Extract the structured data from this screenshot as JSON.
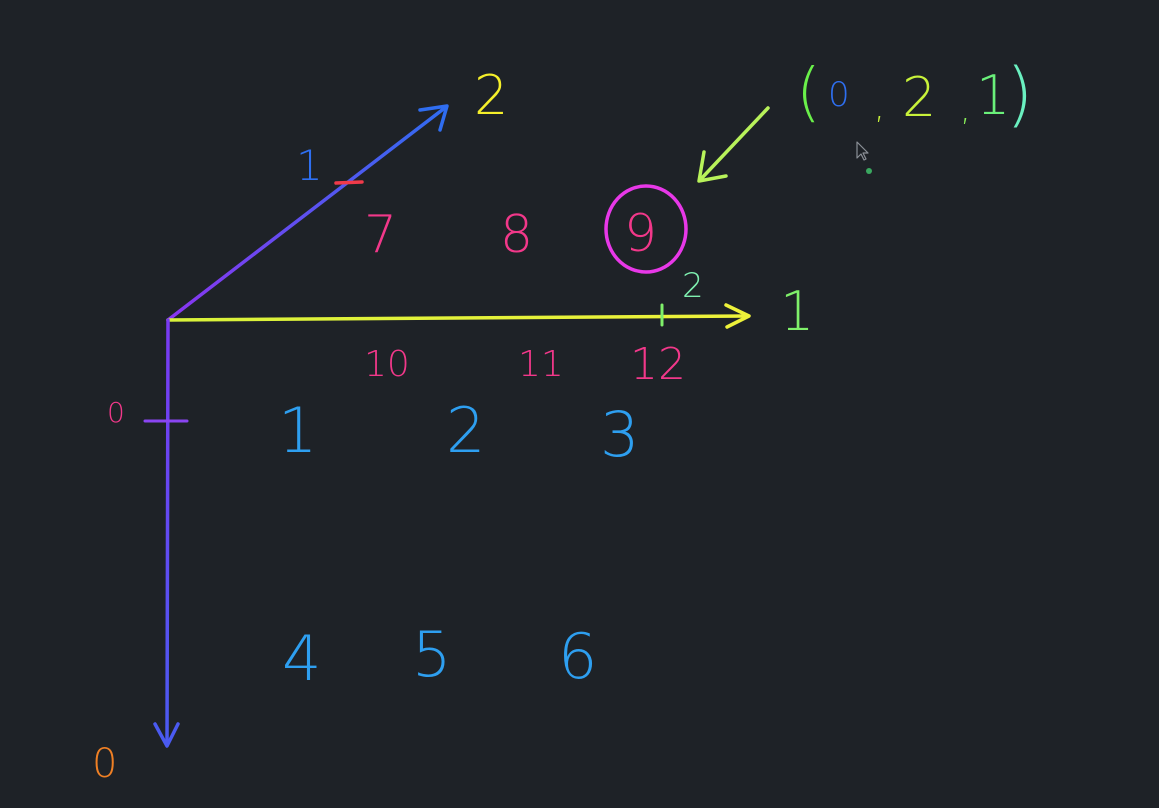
{
  "colors": {
    "background": "#1e2227",
    "axis0": "#6a45f2",
    "axis1": "#e6f23a",
    "axis2": "#2f6df0",
    "layer0": "#2e9ff0",
    "layer1": "#f2388a",
    "label_axis2": "#f5ef2a",
    "label_axis1": "#7ff06a",
    "label_axis0": "#f08024",
    "tick0_label": "#f2388a",
    "tick1_label": "#2e6ff0",
    "tick2_label": "#7ff0b0",
    "circle": "#e838e8",
    "arrow": "#b8f25a",
    "coord_paren_left": "#6af04a",
    "coord_paren_right": "#6af0c0",
    "coord_0": "#2e6ff0",
    "coord_2": "#c8f23a",
    "coord_1": "#6af07a"
  },
  "axes": {
    "axis0_label": "0",
    "axis1_label": "1",
    "axis2_label": "2"
  },
  "ticks": {
    "axis0_tick": "0",
    "axis1_tick": "2",
    "axis2_tick": "1"
  },
  "grid": {
    "layer0": [
      "1",
      "2",
      "3",
      "4",
      "5",
      "6"
    ],
    "layer1": [
      "7",
      "8",
      "9",
      "10",
      "11",
      "12"
    ]
  },
  "highlight": {
    "value": "9",
    "coordinate": {
      "open": "(",
      "i0": "0",
      "sep1": ",",
      "i1": "2",
      "sep2": ",",
      "i2": "1",
      "close": ")"
    }
  }
}
